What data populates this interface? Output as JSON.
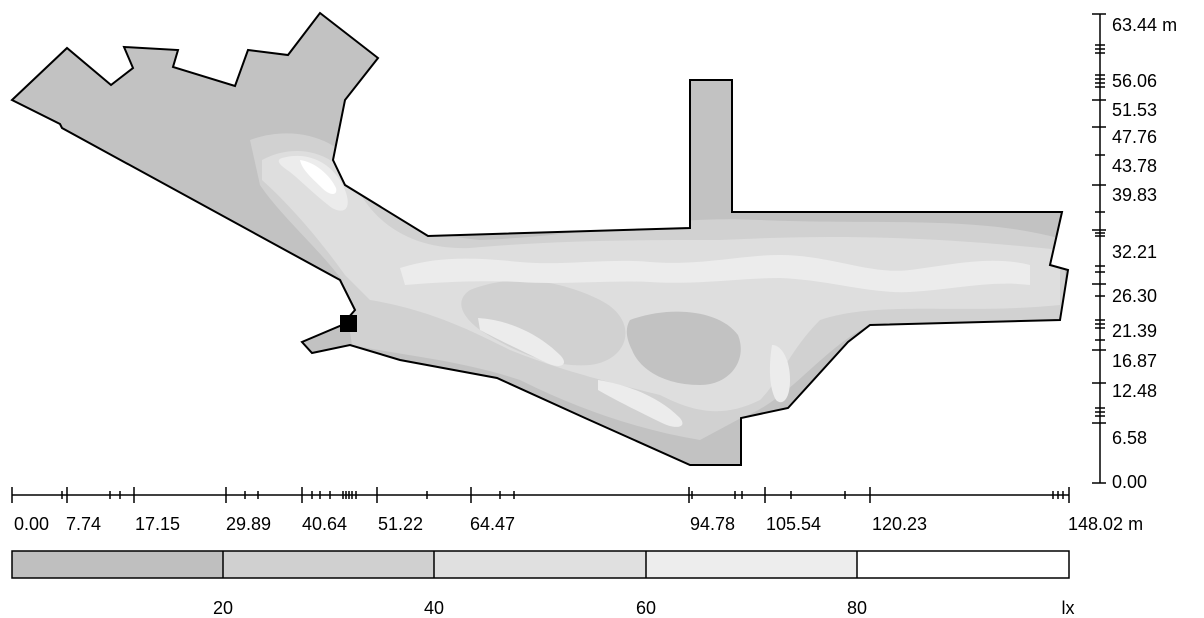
{
  "x_axis": {
    "unit": "m",
    "labels": [
      "0.00",
      "7.74",
      "17.15",
      "29.89",
      "40.64",
      "51.22",
      "64.47",
      "94.78",
      "105.54",
      "120.23",
      "148.02"
    ]
  },
  "y_axis": {
    "unit": "m",
    "labels": [
      "63.44",
      "56.06",
      "51.53",
      "47.76",
      "43.78",
      "39.83",
      "32.21",
      "26.30",
      "21.39",
      "16.87",
      "12.48",
      "6.58",
      "0.00"
    ]
  },
  "legend": {
    "unit": "lx",
    "bands": [
      {
        "color": "#bfbfbf"
      },
      {
        "color": "#d0d0d0"
      },
      {
        "color": "#e0e0e0"
      },
      {
        "color": "#ededed"
      },
      {
        "color": "#ffffff"
      }
    ],
    "thresholds": [
      "20",
      "40",
      "60",
      "80"
    ]
  },
  "colors": {
    "level_below_20": "#c2c2c2",
    "level_20_40": "#d1d1d1",
    "level_40_60": "#dedede",
    "level_60_80": "#ececec",
    "outline": "#000000"
  }
}
